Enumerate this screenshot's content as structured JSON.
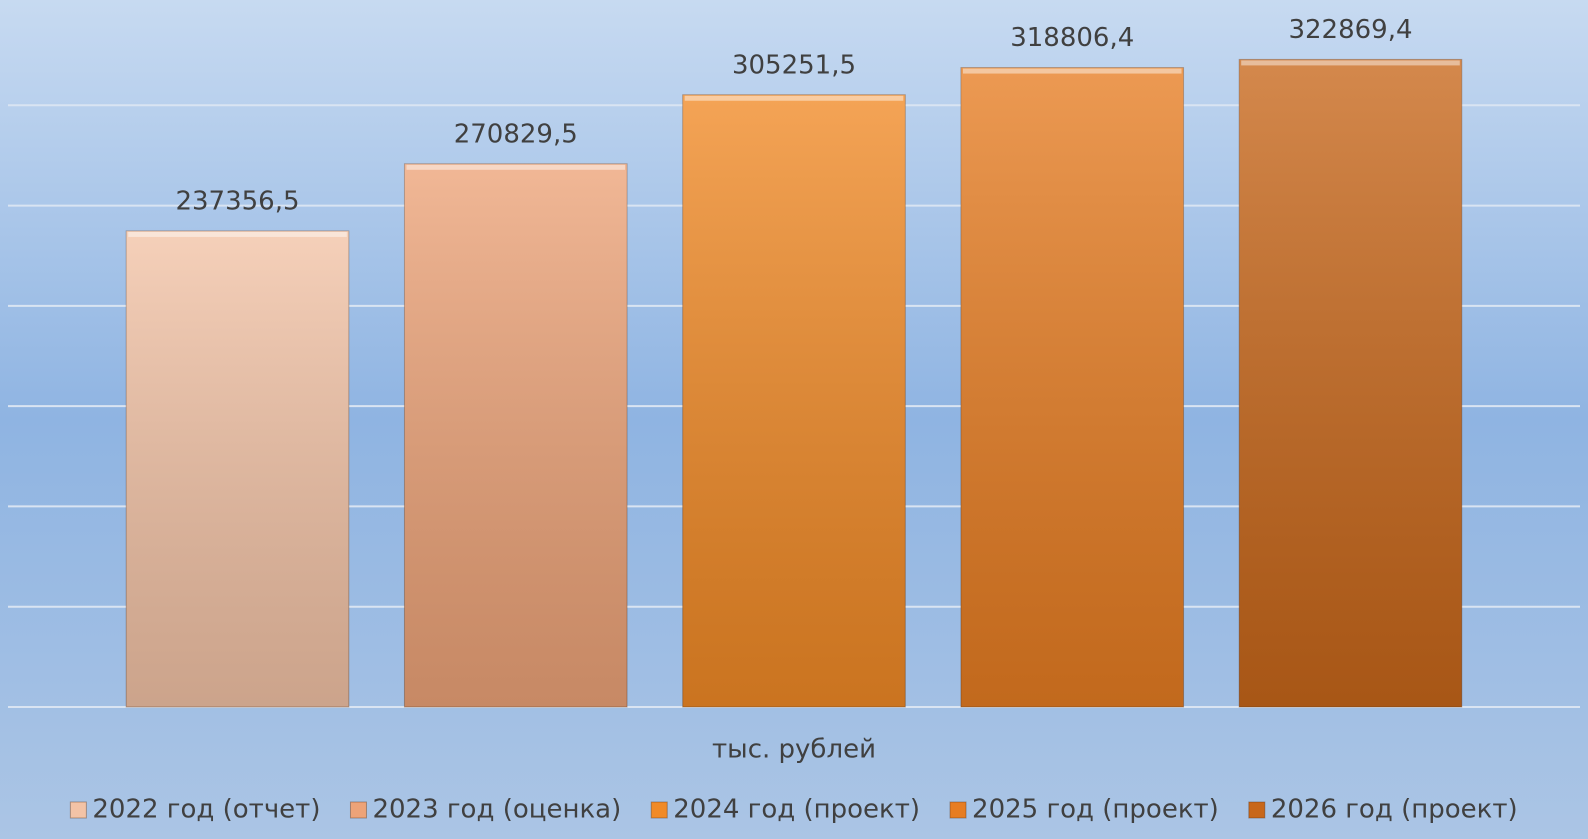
{
  "chart_data": {
    "type": "bar",
    "categories": [
      "тыс. рублей"
    ],
    "series": [
      {
        "name": "2022 год (отчет)",
        "color": "#f3c3a6",
        "values": [
          237356.5
        ],
        "value_labels": [
          "237356,5"
        ]
      },
      {
        "name": "2023 год (оценка)",
        "color": "#eda378",
        "values": [
          270829.5
        ],
        "value_labels": [
          "270829,5"
        ]
      },
      {
        "name": "2024 год (проект)",
        "color": "#f18a26",
        "values": [
          305251.5
        ],
        "value_labels": [
          "305251,5"
        ]
      },
      {
        "name": "2025 год (проект)",
        "color": "#e77d22",
        "values": [
          318806.4
        ],
        "value_labels": [
          "318806,4"
        ]
      },
      {
        "name": "2026 год (проект)",
        "color": "#c8671a",
        "values": [
          322869.4
        ],
        "value_labels": [
          "322869,4"
        ]
      }
    ],
    "ylim": [
      0,
      350000
    ],
    "yticks": [
      0,
      50000,
      100000,
      150000,
      200000,
      250000,
      300000
    ],
    "grid": true,
    "legend": "bottom"
  }
}
